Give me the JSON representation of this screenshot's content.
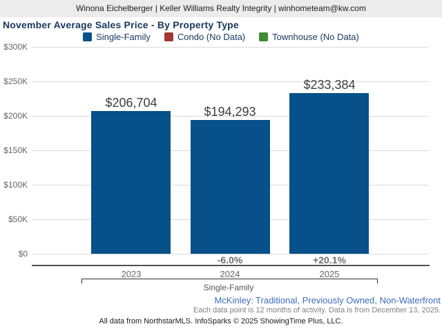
{
  "header": {
    "contact_line": "Winona Eichelberger | Keller Williams Realty Integrity | winhometeam@kw.com"
  },
  "title": "November Average Sales Price - By Property Type",
  "legend": [
    {
      "label": "Single-Family",
      "color": "#075089"
    },
    {
      "label": "Condo (No Data)",
      "color": "#a43532"
    },
    {
      "label": "Townhouse (No Data)",
      "color": "#3f8c35"
    }
  ],
  "chart_data": {
    "type": "bar",
    "title": "November Average Sales Price - By Property Type",
    "categories": [
      "2023",
      "2024",
      "2025"
    ],
    "series": [
      {
        "name": "Single-Family",
        "values": [
          206704,
          194293,
          233384
        ]
      }
    ],
    "value_labels": [
      "$206,704",
      "$194,293",
      "$233,384"
    ],
    "pct_change_labels": [
      "",
      "-6.0%",
      "+20.1%"
    ],
    "group_label": "Single-Family",
    "legend": [
      "Single-Family",
      "Condo (No Data)",
      "Townhouse (No Data)"
    ],
    "legend_position": "top",
    "grid": true,
    "bar_color": "#075089",
    "ylim": [
      0,
      300000
    ],
    "y_ticks": [
      {
        "label": "$0",
        "value": 0
      },
      {
        "label": "$50K",
        "value": 50000
      },
      {
        "label": "$100K",
        "value": 100000
      },
      {
        "label": "$150K",
        "value": 150000
      },
      {
        "label": "$200K",
        "value": 200000
      },
      {
        "label": "$250K",
        "value": 250000
      },
      {
        "label": "$300K",
        "value": 300000
      }
    ]
  },
  "footer": {
    "filters_line": "McKinley: Traditional, Previously Owned, Non-Waterfront",
    "data_note": "Each data point is 12 months of activity. Data is from December 13, 2025.",
    "attribution": "All data from NorthstarMLS. InfoSparks © 2025 ShowingTime Plus, LLC."
  }
}
